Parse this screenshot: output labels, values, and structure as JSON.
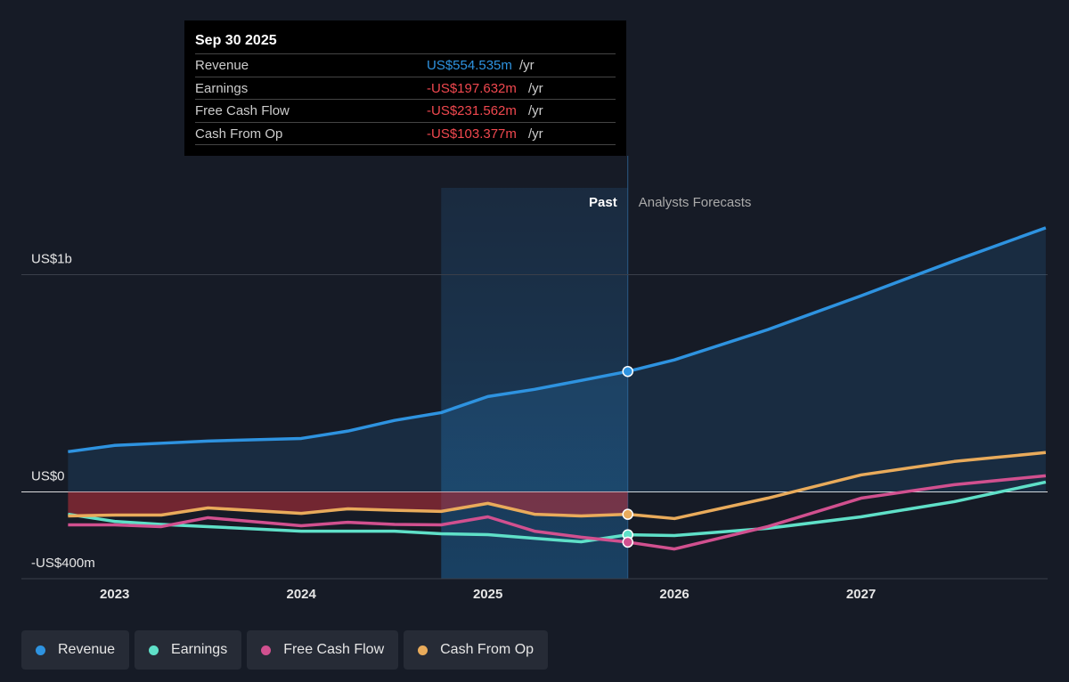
{
  "chart_data": {
    "type": "line",
    "x": [
      2022.75,
      2023,
      2023.25,
      2023.5,
      2024,
      2024.25,
      2024.5,
      2024.75,
      2025,
      2025.25,
      2025.5,
      2025.75,
      2026,
      2026.5,
      2027,
      2027.5,
      2027.99
    ],
    "xlim": [
      2022.5,
      2028
    ],
    "xticks": [
      2023,
      2024,
      2025,
      2026,
      2027
    ],
    "ylim": [
      -400,
      1400
    ],
    "yticks": [
      {
        "value": -400,
        "label": "-US$400m"
      },
      {
        "value": 0,
        "label": "US$0"
      },
      {
        "value": 1000,
        "label": "US$1b"
      }
    ],
    "past_range": [
      2024.75,
      2025.75
    ],
    "annotations": {
      "past": "Past",
      "forecast": "Analysts Forecasts"
    },
    "series": [
      {
        "name": "Revenue",
        "color": "#2e93e0",
        "values": [
          185,
          214,
          224,
          234,
          246,
          280,
          329,
          365,
          439,
          472,
          513,
          554.535,
          608,
          747,
          903,
          1064,
          1216
        ]
      },
      {
        "name": "Earnings",
        "color": "#5fe0c8",
        "values": [
          -103,
          -136,
          -150,
          -160,
          -181,
          -181,
          -181,
          -193,
          -197,
          -214,
          -230,
          -197.632,
          -201,
          -168,
          -115,
          -45,
          45
        ]
      },
      {
        "name": "Free Cash Flow",
        "color": "#d1508f",
        "values": [
          -152,
          -152,
          -160,
          -119,
          -156,
          -140,
          -150,
          -152,
          -115,
          -181,
          -209,
          -231.562,
          -263,
          -160,
          -29,
          33,
          74
        ]
      },
      {
        "name": "Cash From Op",
        "color": "#e9ab5b",
        "values": [
          -111,
          -107,
          -107,
          -74,
          -99,
          -78,
          -85,
          -90,
          -53,
          -103,
          -111,
          -103.377,
          -123,
          -29,
          78,
          140,
          181
        ]
      }
    ],
    "tooltip": {
      "date": "Sep 30 2025",
      "unit": "/yr",
      "values": [
        "US$554.535m",
        "-US$197.632m",
        "-US$231.562m",
        "-US$103.377m"
      ]
    }
  }
}
